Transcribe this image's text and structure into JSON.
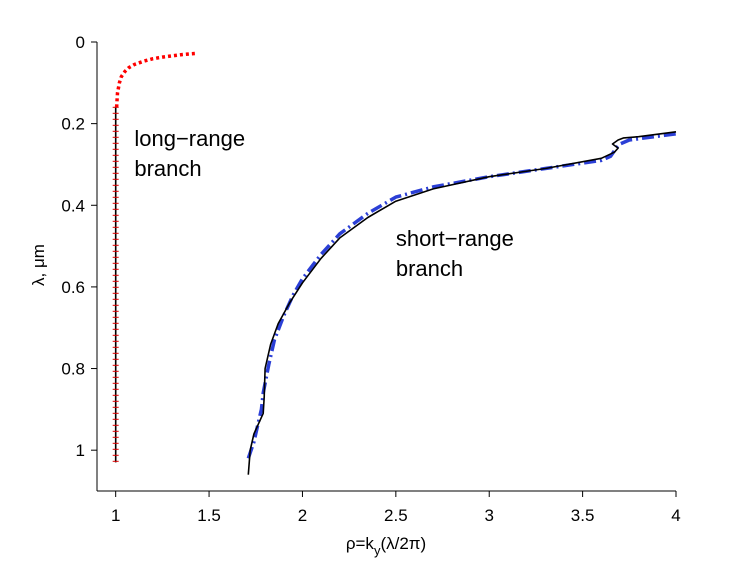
{
  "chart_data": {
    "type": "line",
    "title": "",
    "xlabel": "ρ=k",
    "xlabel_sub": "y",
    "xlabel_tail": "(λ/2π)",
    "ylabel": "λ, μm",
    "xlim": [
      0.9,
      4
    ],
    "ylim": [
      0,
      1.1
    ],
    "y_inverted": true,
    "grid": false,
    "legend": "none",
    "x_ticks": [
      {
        "value": 1,
        "label": "1"
      },
      {
        "value": 1.5,
        "label": "1.5"
      },
      {
        "value": 2,
        "label": "2"
      },
      {
        "value": 2.5,
        "label": "2.5"
      },
      {
        "value": 3,
        "label": "3"
      },
      {
        "value": 3.5,
        "label": "3.5"
      },
      {
        "value": 4,
        "label": "4"
      }
    ],
    "y_ticks": [
      {
        "value": 0,
        "label": "0"
      },
      {
        "value": 0.2,
        "label": "0.2"
      },
      {
        "value": 0.4,
        "label": "0.4"
      },
      {
        "value": 0.6,
        "label": "0.6"
      },
      {
        "value": 0.8,
        "label": "0.8"
      },
      {
        "value": 1,
        "label": "1"
      }
    ],
    "annotations": [
      {
        "lines": [
          "long−range",
          "branch"
        ],
        "x": 1.1,
        "y": 0.255
      },
      {
        "lines": [
          "short−range",
          "branch"
        ],
        "x": 2.5,
        "y": 0.5
      }
    ],
    "series": [
      {
        "color": "#ff0000",
        "style": "dotted",
        "x": [
          1.005,
          1.01,
          1.02,
          1.03,
          1.05,
          1.07,
          1.1,
          1.15,
          1.2,
          1.25,
          1.3,
          1.35,
          1.4,
          1.43
        ],
        "y": [
          0.16,
          0.125,
          0.1,
          0.085,
          0.072,
          0.063,
          0.055,
          0.047,
          0.041,
          0.037,
          0.034,
          0.031,
          0.029,
          0.028
        ]
      },
      {
        "color": "#000000",
        "style": "ticked",
        "x": [
          1.0,
          1.0,
          1.0,
          1.0,
          1.0,
          1.0,
          1.0,
          1.0,
          1.0
        ],
        "y": [
          1.03,
          0.9,
          0.8,
          0.7,
          0.6,
          0.5,
          0.4,
          0.3,
          0.16
        ]
      },
      {
        "color": "#2b3fd6",
        "style": "dashdot",
        "x": [
          1.71,
          1.74,
          1.76,
          1.78,
          1.79,
          1.82,
          1.85,
          1.9,
          1.95,
          2.0,
          2.1,
          2.2,
          2.35,
          2.5,
          2.7,
          3.0,
          3.3,
          3.6,
          3.65,
          3.68,
          3.7,
          3.75,
          4.0
        ],
        "y": [
          1.02,
          0.98,
          0.94,
          0.9,
          0.86,
          0.79,
          0.73,
          0.67,
          0.62,
          0.58,
          0.52,
          0.47,
          0.42,
          0.38,
          0.355,
          0.33,
          0.31,
          0.29,
          0.28,
          0.26,
          0.25,
          0.24,
          0.225
        ]
      },
      {
        "color": "#000000",
        "style": "solid",
        "x": [
          1.71,
          1.72,
          1.74,
          1.77,
          1.79,
          1.795,
          1.8,
          1.83,
          1.87,
          1.93,
          2.0,
          2.1,
          2.2,
          2.35,
          2.5,
          2.7,
          3.0,
          3.3,
          3.6,
          3.67,
          3.69,
          3.66,
          3.69,
          3.72,
          3.8,
          4.0
        ],
        "y": [
          1.06,
          1.0,
          0.96,
          0.93,
          0.91,
          0.87,
          0.8,
          0.74,
          0.69,
          0.64,
          0.59,
          0.53,
          0.48,
          0.43,
          0.39,
          0.36,
          0.33,
          0.31,
          0.285,
          0.27,
          0.26,
          0.25,
          0.24,
          0.235,
          0.232,
          0.22
        ]
      }
    ]
  }
}
